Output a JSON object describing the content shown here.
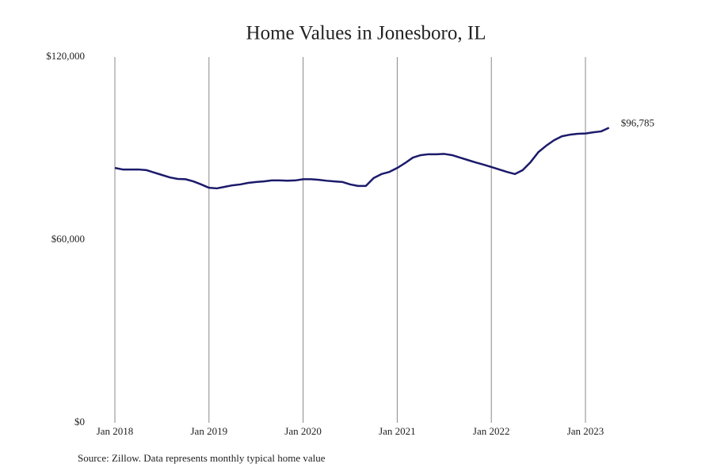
{
  "chart_data": {
    "type": "line",
    "title": "Home Values in Jonesboro, IL",
    "source": "Source: Zillow. Data represents monthly typical home value",
    "x": [
      "2018-01",
      "2018-02",
      "2018-03",
      "2018-04",
      "2018-05",
      "2018-06",
      "2018-07",
      "2018-08",
      "2018-09",
      "2018-10",
      "2018-11",
      "2018-12",
      "2019-01",
      "2019-02",
      "2019-03",
      "2019-04",
      "2019-05",
      "2019-06",
      "2019-07",
      "2019-08",
      "2019-09",
      "2019-10",
      "2019-11",
      "2019-12",
      "2020-01",
      "2020-02",
      "2020-03",
      "2020-04",
      "2020-05",
      "2020-06",
      "2020-07",
      "2020-08",
      "2020-09",
      "2020-10",
      "2020-11",
      "2020-12",
      "2021-01",
      "2021-02",
      "2021-03",
      "2021-04",
      "2021-05",
      "2021-06",
      "2021-07",
      "2021-08",
      "2021-09",
      "2021-10",
      "2021-11",
      "2021-12",
      "2022-01",
      "2022-02",
      "2022-03",
      "2022-04",
      "2022-05",
      "2022-06",
      "2022-07",
      "2022-08",
      "2022-09",
      "2022-10",
      "2022-11",
      "2022-12",
      "2023-01",
      "2023-02",
      "2023-03",
      "2023-04"
    ],
    "series": [
      {
        "name": "Home value",
        "color": "#1b1a6b",
        "values": [
          83600,
          83100,
          83100,
          83100,
          82900,
          82100,
          81300,
          80500,
          80000,
          79900,
          79200,
          78200,
          77100,
          76900,
          77400,
          77900,
          78200,
          78700,
          79000,
          79200,
          79500,
          79500,
          79400,
          79500,
          79900,
          79900,
          79700,
          79400,
          79200,
          79000,
          78200,
          77700,
          77700,
          80300,
          81600,
          82300,
          83600,
          85200,
          87000,
          87800,
          88100,
          88100,
          88200,
          87800,
          87000,
          86200,
          85400,
          84700,
          83900,
          83100,
          82300,
          81600,
          82900,
          85500,
          88800,
          90900,
          92700,
          94000,
          94500,
          94800,
          94900,
          95300,
          95600,
          96785
        ]
      }
    ],
    "end_label": "$96,785",
    "ylim": [
      0,
      120000
    ],
    "yticks": [
      {
        "value": 0,
        "label": "$0"
      },
      {
        "value": 60000,
        "label": "$60,000"
      },
      {
        "value": 120000,
        "label": "$120,000"
      }
    ],
    "xticks": [
      {
        "value": "2018-01",
        "label": "Jan 2018"
      },
      {
        "value": "2019-01",
        "label": "Jan 2019"
      },
      {
        "value": "2020-01",
        "label": "Jan 2020"
      },
      {
        "value": "2021-01",
        "label": "Jan 2021"
      },
      {
        "value": "2022-01",
        "label": "Jan 2022"
      },
      {
        "value": "2023-01",
        "label": "Jan 2023"
      }
    ],
    "xgrid": true
  }
}
